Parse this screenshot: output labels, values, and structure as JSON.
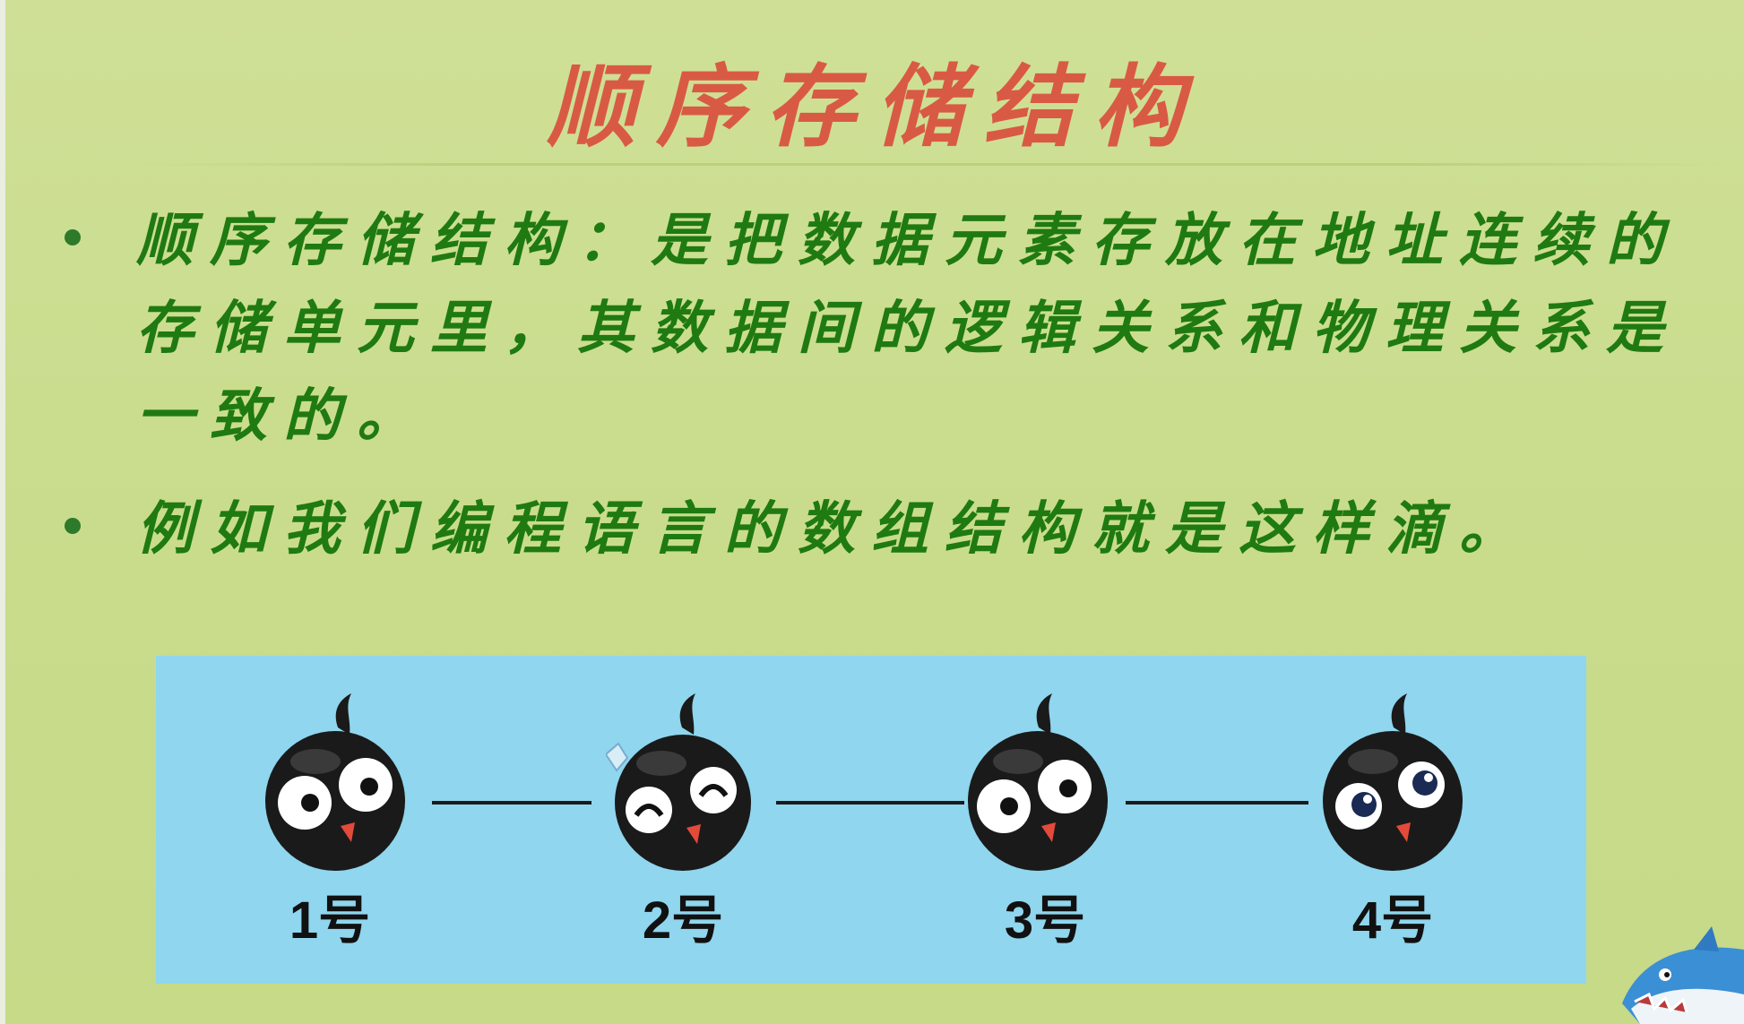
{
  "slide": {
    "title": "顺序存储结构",
    "bullets": [
      "顺序存储结构：是把数据元素存放在地址连续的存储单元里，其数据间的逻辑关系和物理关系是一致的。",
      "例如我们编程语言的数组结构就是这样滴。"
    ]
  },
  "diagram": {
    "nodes": [
      {
        "label": "1号"
      },
      {
        "label": "2号"
      },
      {
        "label": "3号"
      },
      {
        "label": "4号"
      }
    ]
  },
  "icons": [
    "tadpole-character-icon",
    "shark-mascot-icon"
  ],
  "colors": {
    "background": "#c9dc8e",
    "title": "#d95a44",
    "body_text": "#1f7a12",
    "diagram_bg": "#8fd6ee"
  }
}
